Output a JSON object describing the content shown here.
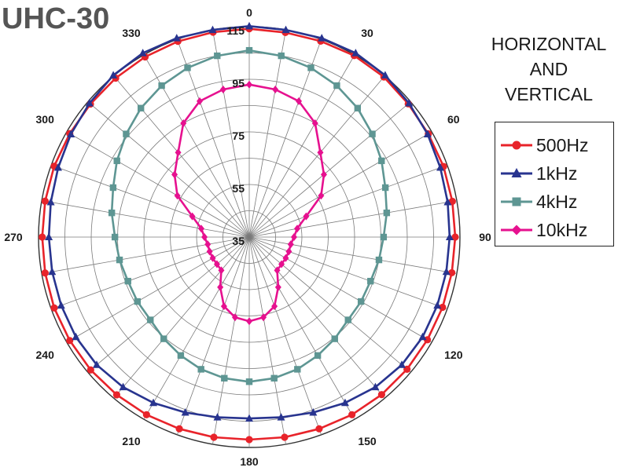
{
  "chart_data": {
    "type": "polar",
    "title": "UHC-30",
    "subtitle_lines": [
      "HORIZONTAL",
      "AND",
      "VERTICAL"
    ],
    "angle_unit": "degrees",
    "angle_ticks": [
      "0",
      "30",
      "60",
      "90",
      "120",
      "150",
      "180",
      "210",
      "240",
      "270",
      "300",
      "330"
    ],
    "radial_ticks": [
      "35",
      "55",
      "75",
      "95",
      "115"
    ],
    "radial_range": [
      35,
      115
    ],
    "angular_grid_step": 10,
    "radial_grid_step": 10,
    "grid": true,
    "legend_position": "right",
    "angles": [
      0,
      10,
      20,
      30,
      40,
      50,
      60,
      70,
      80,
      90,
      100,
      110,
      120,
      130,
      140,
      150,
      160,
      170,
      180,
      190,
      200,
      210,
      220,
      230,
      240,
      250,
      260,
      270,
      280,
      290,
      300,
      310,
      320,
      330,
      340,
      350
    ],
    "series": [
      {
        "name": "500Hz",
        "color": "#e8232a",
        "marker": "circle",
        "values": [
          114.2,
          114.0,
          114.3,
          114.7,
          114.5,
          113.8,
          113.5,
          113.5,
          113.3,
          113.2,
          113.1,
          113.1,
          113.1,
          113.2,
          113.2,
          113.0,
          112.6,
          112.3,
          112.0,
          112.3,
          112.6,
          113.0,
          113.3,
          113.6,
          113.7,
          113.8,
          113.7,
          113.6,
          113.7,
          113.8,
          113.7,
          113.7,
          113.9,
          114.1,
          114.2,
          114.1
        ]
      },
      {
        "name": "1kHz",
        "color": "#28348f",
        "marker": "triangle",
        "values": [
          115.2,
          115.0,
          115.5,
          115.8,
          115.3,
          114.2,
          113.2,
          112.2,
          111.5,
          111.1,
          111.0,
          111.0,
          111.0,
          110.6,
          109.5,
          107.8,
          106.0,
          104.6,
          104.0,
          104.6,
          106.0,
          107.8,
          109.5,
          110.6,
          111.0,
          111.0,
          111.0,
          111.1,
          111.5,
          112.2,
          113.2,
          114.2,
          115.3,
          115.8,
          115.5,
          115.0
        ]
      },
      {
        "name": "4kHz",
        "color": "#5e9693",
        "marker": "square",
        "values": [
          106.0,
          105.0,
          103.5,
          101.5,
          99.0,
          96.0,
          93.0,
          90.0,
          88.0,
          86.0,
          85.0,
          84.0,
          84.0,
          84.0,
          85.5,
          87.0,
          88.5,
          89.5,
          90.0,
          89.5,
          88.5,
          87.0,
          85.5,
          84.0,
          84.0,
          84.0,
          85.0,
          86.0,
          88.0,
          90.0,
          93.0,
          96.0,
          99.0,
          101.5,
          103.5,
          105.0
        ]
      },
      {
        "name": "10kHz",
        "color": "#e6118f",
        "marker": "diamond",
        "values": [
          93.0,
          92.0,
          90.0,
          85.0,
          77.0,
          72.0,
          66.5,
          58.0,
          53.5,
          52.0,
          51.0,
          51.0,
          51.0,
          51.0,
          51.5,
          57.0,
          63.0,
          66.0,
          67.0,
          66.0,
          63.0,
          57.0,
          51.5,
          51.0,
          51.0,
          51.0,
          51.0,
          52.0,
          53.5,
          58.0,
          66.5,
          72.0,
          77.0,
          85.0,
          90.0,
          92.0
        ]
      }
    ]
  }
}
